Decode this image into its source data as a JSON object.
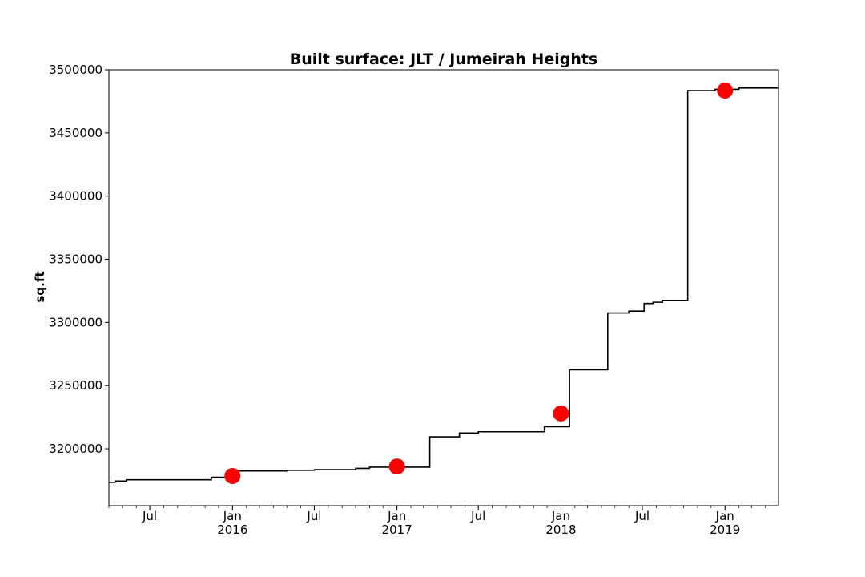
{
  "chart_data": {
    "type": "line",
    "title": "Built surface: JLT / Jumeirah Heights",
    "xlabel": "",
    "ylabel": "sq.ft",
    "xlim": [
      "2015-04-01",
      "2019-04-30"
    ],
    "ylim": [
      3155000,
      3500000
    ],
    "grid": false,
    "legend": "none",
    "y_ticks": [
      3200000,
      3250000,
      3300000,
      3350000,
      3400000,
      3450000,
      3500000
    ],
    "y_tick_labels": [
      "3200000",
      "3250000",
      "3300000",
      "3350000",
      "3400000",
      "3450000",
      "3500000"
    ],
    "x_ticks": [
      {
        "date": "2015-07-01",
        "label": "Jul",
        "sublabel": ""
      },
      {
        "date": "2016-01-01",
        "label": "Jan",
        "sublabel": "2016"
      },
      {
        "date": "2016-07-01",
        "label": "Jul",
        "sublabel": ""
      },
      {
        "date": "2017-01-01",
        "label": "Jan",
        "sublabel": "2017"
      },
      {
        "date": "2017-07-01",
        "label": "Jul",
        "sublabel": ""
      },
      {
        "date": "2018-01-01",
        "label": "Jan",
        "sublabel": "2018"
      },
      {
        "date": "2018-07-01",
        "label": "Jul",
        "sublabel": ""
      },
      {
        "date": "2019-01-01",
        "label": "Jan",
        "sublabel": "2019"
      }
    ],
    "series": [
      {
        "style": "step",
        "color": "#000000",
        "points": [
          [
            "2015-04-01",
            3173500
          ],
          [
            "2015-04-15",
            3174500
          ],
          [
            "2015-05-10",
            3175500
          ],
          [
            "2015-11-15",
            3177500
          ],
          [
            "2016-01-15",
            3182500
          ],
          [
            "2016-05-01",
            3183000
          ],
          [
            "2016-07-01",
            3183500
          ],
          [
            "2016-10-01",
            3184500
          ],
          [
            "2016-11-01",
            3185500
          ],
          [
            "2017-03-15",
            3209500
          ],
          [
            "2017-05-20",
            3212500
          ],
          [
            "2017-07-01",
            3213500
          ],
          [
            "2017-11-25",
            3217500
          ],
          [
            "2018-01-20",
            3262500
          ],
          [
            "2018-04-15",
            3307500
          ],
          [
            "2018-06-01",
            3309000
          ],
          [
            "2018-07-05",
            3315000
          ],
          [
            "2018-07-25",
            3316000
          ],
          [
            "2018-08-15",
            3317500
          ],
          [
            "2018-10-10",
            3483500
          ],
          [
            "2018-12-10",
            3484500
          ],
          [
            "2019-02-01",
            3485500
          ],
          [
            "2019-04-30",
            3486000
          ]
        ]
      },
      {
        "style": "markers",
        "color": "#ff0000",
        "points": [
          [
            "2016-01-01",
            3178500
          ],
          [
            "2017-01-01",
            3186000
          ],
          [
            "2018-01-01",
            3228000
          ],
          [
            "2019-01-01",
            3483500
          ]
        ]
      }
    ]
  }
}
